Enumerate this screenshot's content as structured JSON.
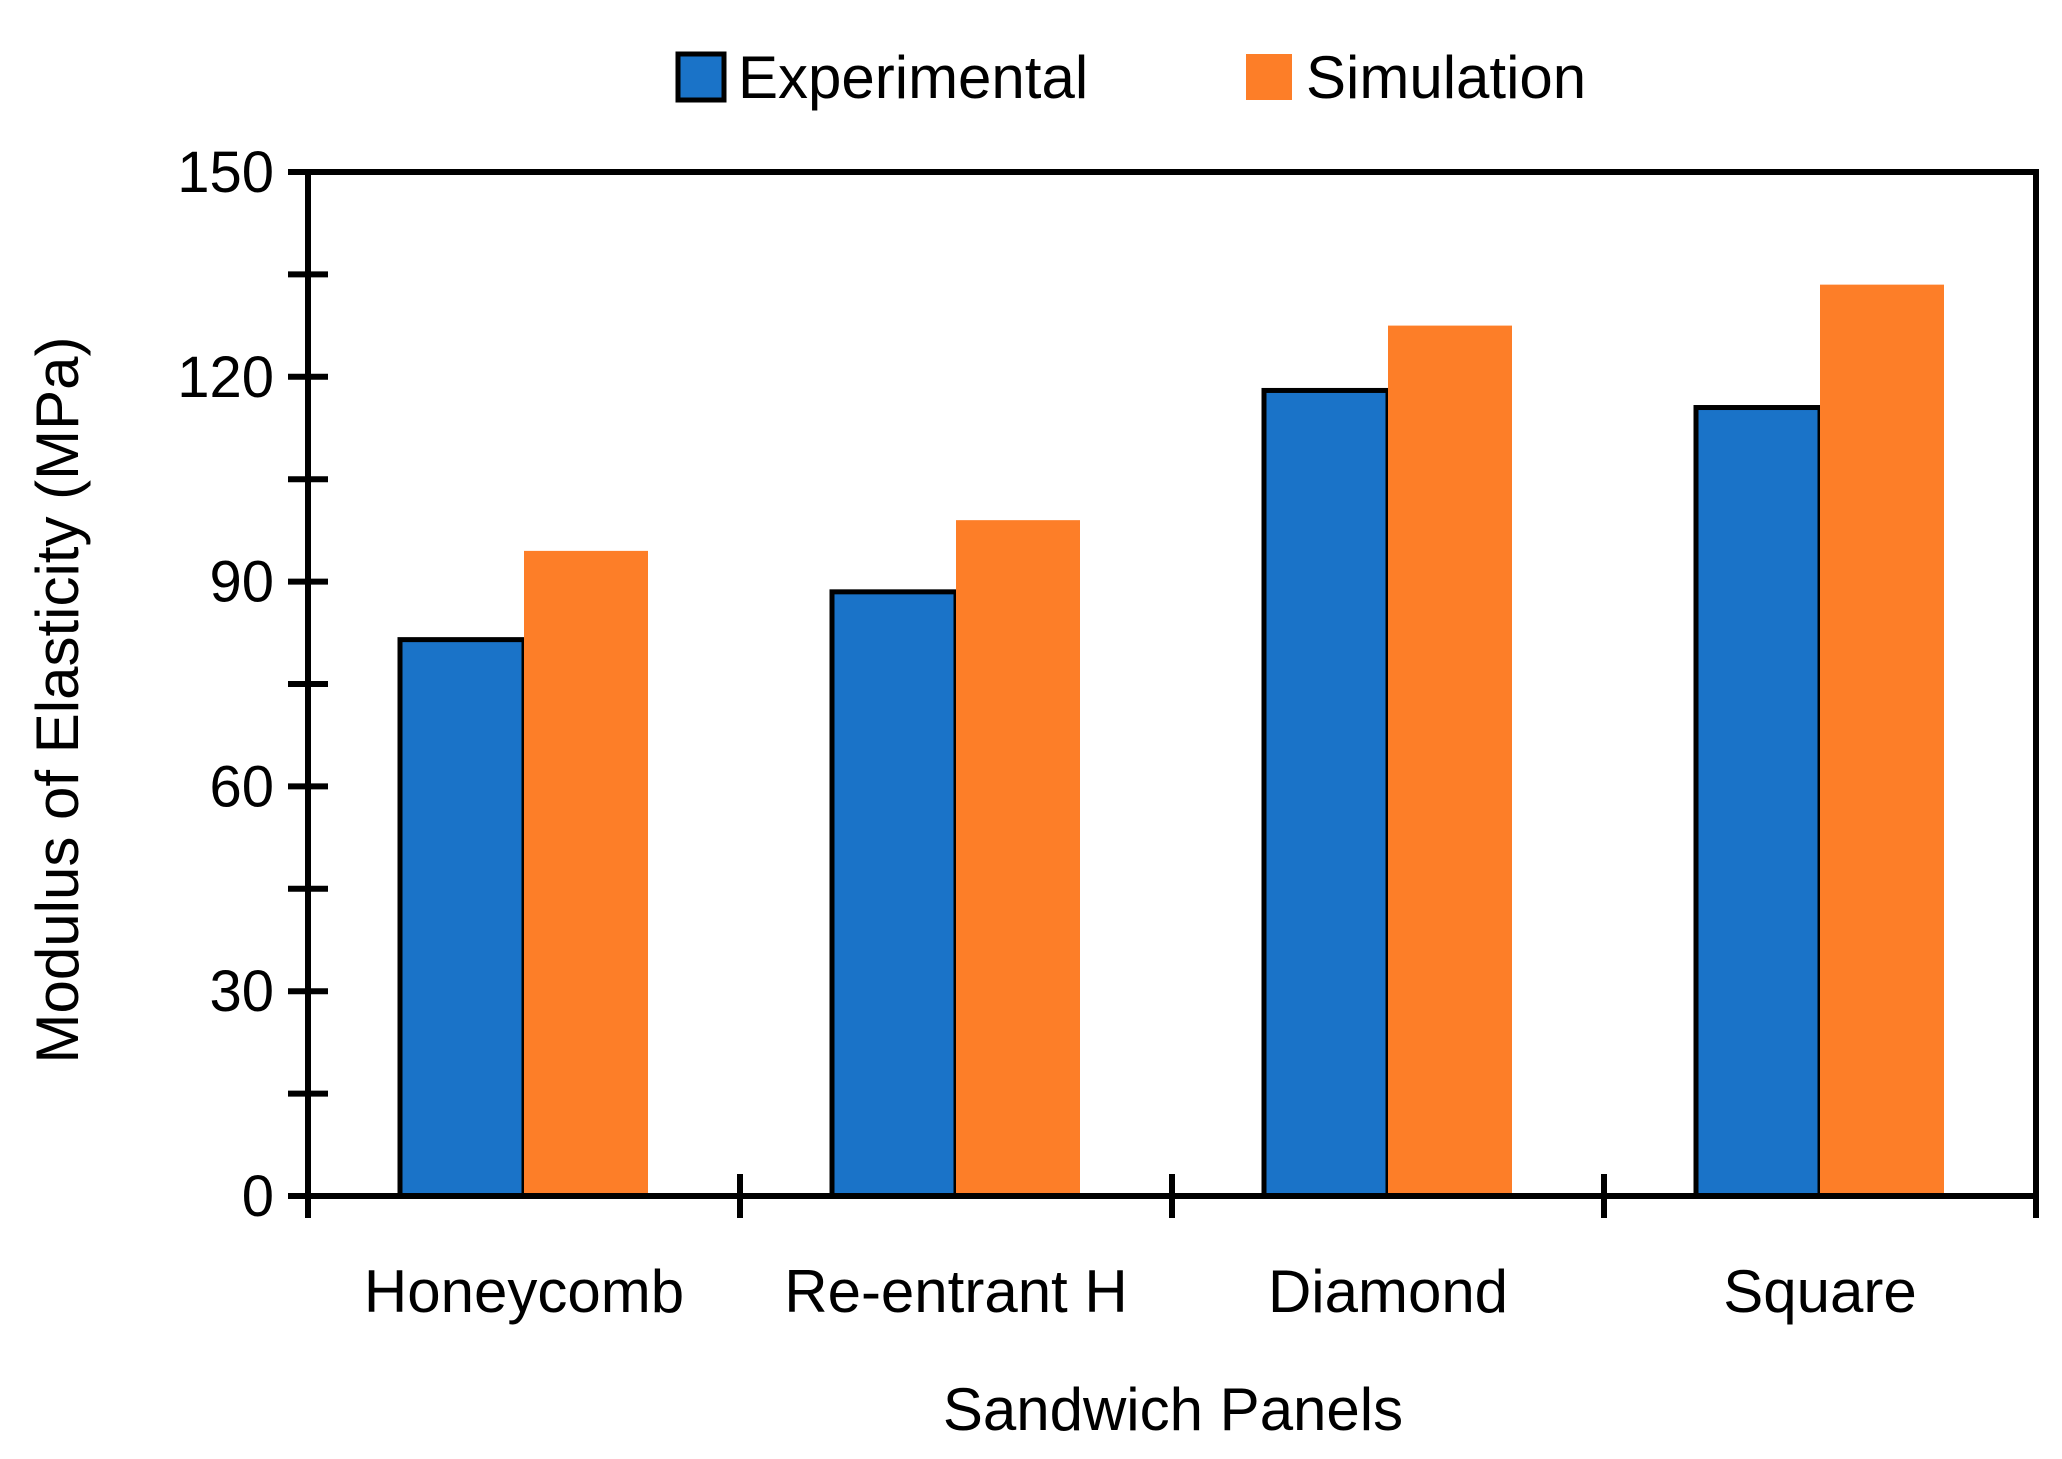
{
  "chart_data": {
    "type": "bar",
    "title": "",
    "xlabel": "Sandwich Panels",
    "ylabel": "Modulus of Elasticity (MPa)",
    "ylim": [
      0,
      150
    ],
    "yticks": [
      0,
      30,
      60,
      90,
      120,
      150
    ],
    "categories": [
      "Honeycomb",
      "Re-entrant H",
      "Diamond",
      "Square"
    ],
    "series": [
      {
        "name": "Experimental",
        "values": [
          81.5,
          88.5,
          118.0,
          115.5
        ],
        "color": "#1a73c8"
      },
      {
        "name": "Simulation",
        "values": [
          94.5,
          99.0,
          127.5,
          133.5
        ],
        "color": "#fd7e28"
      }
    ],
    "legend_position": "top-center",
    "grid": false
  }
}
